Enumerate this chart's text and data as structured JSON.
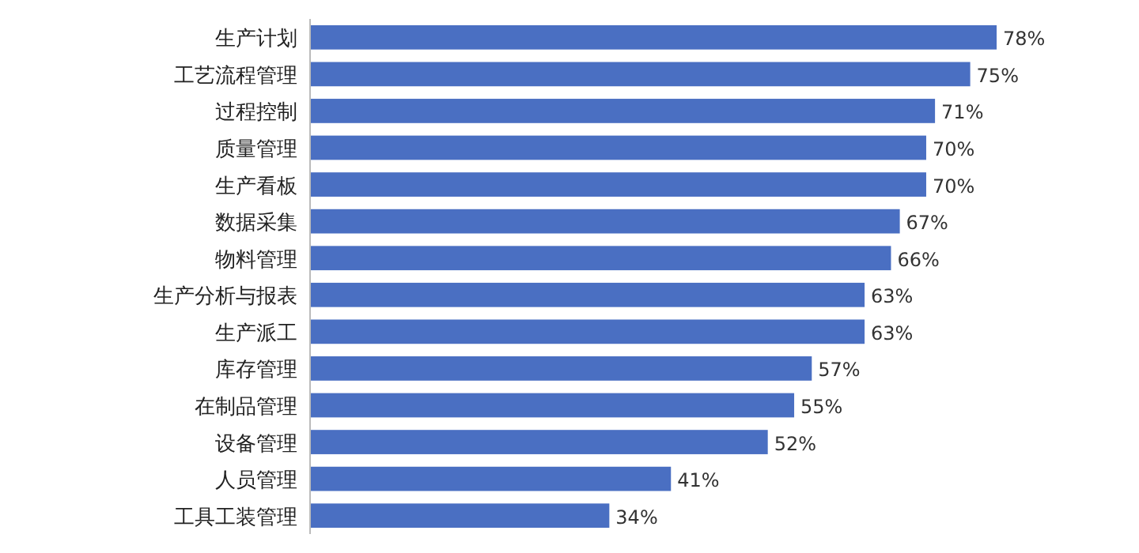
{
  "chart_data": {
    "type": "bar",
    "orientation": "horizontal",
    "color": "#4a6fc2",
    "categories": [
      "生产计划",
      "工艺流程管理",
      "过程控制",
      "质量管理",
      "生产看板",
      "数据采集",
      "物料管理",
      "生产分析与报表",
      "生产派工",
      "库存管理",
      "在制品管理",
      "设备管理",
      "人员管理",
      "工具工装管理"
    ],
    "values": [
      78,
      75,
      71,
      70,
      70,
      67,
      66,
      63,
      63,
      57,
      55,
      52,
      41,
      34
    ],
    "value_labels": [
      "78%",
      "75%",
      "71%",
      "70%",
      "70%",
      "67%",
      "66%",
      "63%",
      "63%",
      "57%",
      "55%",
      "52%",
      "41%",
      "34%"
    ]
  }
}
